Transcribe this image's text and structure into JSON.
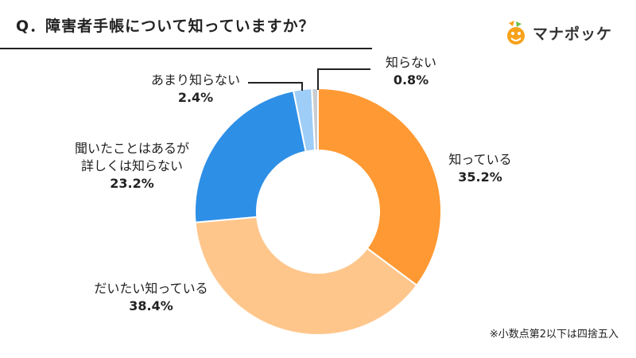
{
  "header": {
    "title": "Q．障害者手帳について知っていますか？",
    "logo_text": "マナポッケ"
  },
  "footnote": "※小数点第2以下は四捨五入",
  "chart_data": {
    "type": "pie",
    "variant": "donut",
    "title": "Q．障害者手帳について知っていますか？",
    "start_angle_deg": 0,
    "direction": "clockwise",
    "slices": [
      {
        "label": "知っている",
        "label_lines": [
          "知っている"
        ],
        "value": 35.2,
        "value_text": "35.2%",
        "color": "#FF9933"
      },
      {
        "label": "だいたい知っている",
        "label_lines": [
          "だいたい知っている"
        ],
        "value": 38.4,
        "value_text": "38.4%",
        "color": "#FFC68C"
      },
      {
        "label": "聞いたことはあるが詳しくは知らない",
        "label_lines": [
          "聞いたことはあるが",
          "詳しくは知らない"
        ],
        "value": 23.2,
        "value_text": "23.2%",
        "color": "#2E8FE6"
      },
      {
        "label": "あまり知らない",
        "label_lines": [
          "あまり知らない"
        ],
        "value": 2.4,
        "value_text": "2.4%",
        "color": "#9ECDF7"
      },
      {
        "label": "知らない",
        "label_lines": [
          "知らない"
        ],
        "value": 0.8,
        "value_text": "0.8%",
        "color": "#C9CDD2"
      }
    ]
  }
}
